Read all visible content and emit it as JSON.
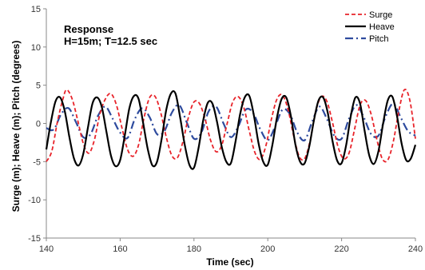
{
  "chart_data": {
    "type": "line",
    "annotations": [
      "Response",
      "H=15m; T=12.5 sec"
    ],
    "xlabel": "Time (sec)",
    "ylabel": "Surge (m); Heave (m); Pitch (degrees)",
    "xlim": [
      140,
      240
    ],
    "ylim": [
      -15,
      15
    ],
    "x_ticks": [
      140,
      160,
      180,
      200,
      220,
      240
    ],
    "y_ticks": [
      -15,
      -10,
      -5,
      0,
      5,
      10,
      15
    ],
    "grid": false,
    "legend_position": "top-right",
    "series": [
      {
        "name": "Surge",
        "color": "#e8232a",
        "dash": "dashed",
        "x": [
          140,
          141.5,
          143,
          144.5,
          145.5,
          147,
          148.5,
          150,
          151.5,
          153,
          154.5,
          156,
          157.5,
          159,
          160.5,
          162,
          163.5,
          165,
          166.5,
          168,
          169.5,
          171,
          172.5,
          174,
          175.5,
          177,
          178.5,
          180,
          181.5,
          183,
          184.5,
          186,
          187.5,
          189,
          190.5,
          192,
          193.5,
          195,
          196.5,
          198,
          199.5,
          201,
          202.5,
          204,
          205.5,
          207,
          208.5,
          210,
          211.5,
          213,
          214.5,
          216,
          217.5,
          219,
          220.5,
          222,
          223.5,
          225,
          226.5,
          228,
          229.5,
          231,
          232.5,
          234,
          235.5,
          237,
          238.5,
          240
        ],
        "y": [
          -5.0,
          -3.6,
          0.2,
          3.2,
          4.4,
          3.2,
          0.4,
          -2.6,
          -3.9,
          -2.2,
          1.2,
          3.2,
          3.9,
          2.4,
          -0.6,
          -3.4,
          -4.3,
          -2.8,
          0.8,
          3.4,
          3.5,
          1.4,
          -1.8,
          -4.2,
          -4.5,
          -2.4,
          0.8,
          2.8,
          2.6,
          0.6,
          -2.2,
          -3.7,
          -2.9,
          0.0,
          2.8,
          3.5,
          2.1,
          -1.0,
          -3.8,
          -4.7,
          -2.9,
          0.6,
          3.2,
          3.7,
          1.8,
          -1.6,
          -4.3,
          -4.6,
          -2.2,
          1.6,
          3.5,
          2.9,
          0.2,
          -3.0,
          -4.6,
          -3.9,
          -0.8,
          2.4,
          3.0,
          1.2,
          -2.0,
          -4.6,
          -4.8,
          -2.4,
          1.6,
          4.4,
          3.0,
          -2.0
        ]
      },
      {
        "name": "Heave",
        "color": "#000000",
        "dash": "solid",
        "x": [
          140,
          141.25,
          142.5,
          143.75,
          145,
          146.25,
          147.5,
          148.75,
          150,
          151.25,
          152.5,
          153.75,
          155,
          156.25,
          157.5,
          158.75,
          160,
          161.25,
          162.5,
          163.75,
          165,
          166.25,
          167.5,
          168.75,
          170,
          171.25,
          172.5,
          173.75,
          175,
          176.25,
          177.5,
          178.75,
          180,
          181.25,
          182.5,
          183.75,
          185,
          186.25,
          187.5,
          188.75,
          190,
          191.25,
          192.5,
          193.75,
          195,
          196.25,
          197.5,
          198.75,
          200,
          201.25,
          202.5,
          203.75,
          205,
          206.25,
          207.5,
          208.75,
          210,
          211.25,
          212.5,
          213.75,
          215,
          216.25,
          217.5,
          218.75,
          220,
          221.25,
          222.5,
          223.75,
          225,
          226.25,
          227.5,
          228.75,
          230,
          231.25,
          232.5,
          233.75,
          235,
          236.25,
          237.5,
          238.75,
          240
        ],
        "y": [
          -3.4,
          0.2,
          2.9,
          3.4,
          1.6,
          -1.8,
          -4.6,
          -5.5,
          -4.0,
          -0.6,
          2.6,
          3.4,
          2.2,
          -1.0,
          -4.2,
          -5.6,
          -4.8,
          -1.6,
          2.0,
          3.6,
          3.2,
          0.0,
          -3.4,
          -5.5,
          -5.0,
          -2.0,
          1.8,
          3.9,
          3.9,
          0.8,
          -2.8,
          -5.4,
          -5.8,
          -3.2,
          0.4,
          2.7,
          2.6,
          0.2,
          -3.0,
          -5.0,
          -5.2,
          -2.4,
          1.2,
          3.4,
          3.6,
          1.0,
          -2.6,
          -5.0,
          -5.4,
          -2.8,
          0.8,
          3.2,
          3.4,
          1.0,
          -2.8,
          -5.0,
          -5.2,
          -3.0,
          0.4,
          3.0,
          3.4,
          1.4,
          -2.2,
          -4.8,
          -5.2,
          -2.8,
          1.0,
          3.4,
          2.6,
          -1.0,
          -4.2,
          -5.3,
          -3.6,
          0.0,
          3.0,
          3.5,
          1.0,
          -2.6,
          -4.8,
          -4.6,
          -2.8
        ]
      },
      {
        "name": "Pitch",
        "color": "#2e4b9e",
        "dash": "dashdot",
        "x": [
          140,
          142,
          144,
          146,
          148,
          150,
          152,
          154,
          156,
          158,
          160,
          162,
          164,
          166,
          168,
          170,
          172,
          174,
          176,
          178,
          180,
          182,
          184,
          186,
          188,
          190,
          192,
          194,
          196,
          198,
          200,
          202,
          204,
          206,
          208,
          210,
          212,
          214,
          216,
          218,
          220,
          222,
          224,
          226,
          228,
          230,
          232,
          234,
          236,
          238,
          240
        ],
        "y": [
          -0.6,
          -0.8,
          1.2,
          2.0,
          0.2,
          -1.8,
          -1.4,
          1.0,
          2.2,
          0.6,
          -1.2,
          -1.9,
          0.6,
          2.0,
          0.8,
          -1.4,
          -1.0,
          1.4,
          2.4,
          0.2,
          -2.0,
          -1.2,
          1.6,
          2.2,
          0.0,
          -1.8,
          -0.4,
          1.8,
          1.4,
          -0.8,
          -2.2,
          -0.4,
          1.8,
          1.2,
          -1.2,
          -2.2,
          0.2,
          2.2,
          0.6,
          -1.6,
          -2.0,
          0.6,
          2.4,
          0.8,
          -1.4,
          -1.6,
          1.0,
          2.6,
          0.8,
          -1.0,
          -1.6
        ]
      }
    ]
  }
}
